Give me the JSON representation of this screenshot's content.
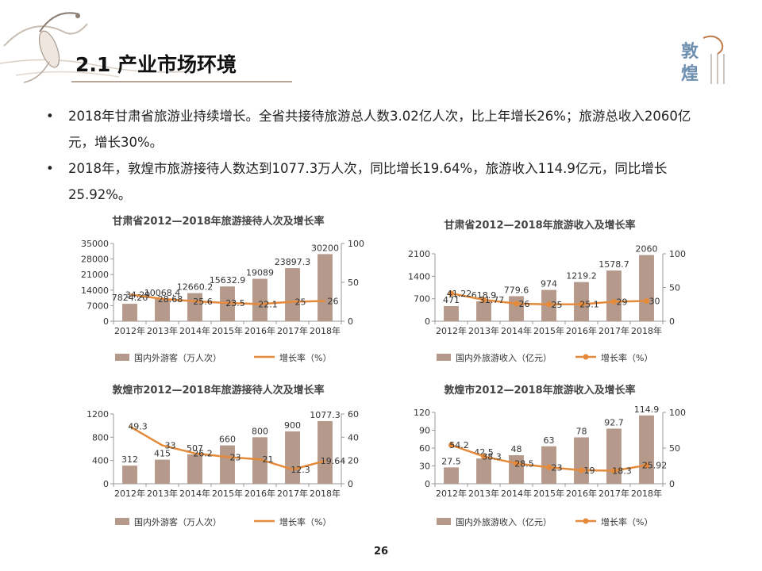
{
  "page": {
    "title": "2.1 产业市场环境",
    "page_number": "26",
    "bullet_symbol": "•",
    "bullets": [
      "2018年甘肃省旅游业持续增长。全省共接待旅游总人数3.02亿人次，比上年增长26%；旅游总收入2060亿元，增长30%。",
      "2018年，敦煌市旅游接待人数达到1077.3万人次，同比增长19.64%，旅游收入114.9亿元，同比增长25.92%。"
    ],
    "logo_text": "敦煌"
  },
  "colors": {
    "bar": "#b5998a",
    "line": "#e48a3a",
    "axis": "#999999",
    "text": "#333333"
  },
  "chart_data": [
    {
      "type": "bar",
      "title": "甘肃省2012—2018年旅游接待人次及增长率",
      "categories": [
        "2012年",
        "2013年",
        "2014年",
        "2015年",
        "2016年",
        "2017年",
        "2018年"
      ],
      "series": [
        {
          "name": "国内外游客（万人次）",
          "type": "bar",
          "axis": "left",
          "values": [
            7824.26,
            10068.4,
            12660.2,
            15632.9,
            19089,
            23897.3,
            30200
          ],
          "labels": [
            "7824.26",
            "10068.4",
            "12660.2",
            "15632.9",
            "19089",
            "23897.3",
            "30200"
          ]
        },
        {
          "name": "增长率（%）",
          "type": "line",
          "axis": "right",
          "marker": false,
          "values": [
            34.29,
            28.68,
            25.6,
            23.5,
            22.1,
            25,
            26
          ],
          "labels": [
            "34.29",
            "28.68",
            "25.6",
            "23.5",
            "22.1",
            "25",
            "26"
          ]
        }
      ],
      "y_left": {
        "min": 0,
        "max": 35000,
        "ticks": [
          "0",
          "7000",
          "14000",
          "21000",
          "28000",
          "35000"
        ]
      },
      "y_right": {
        "min": 0,
        "max": 100,
        "ticks": [
          "0",
          "50",
          "100"
        ]
      }
    },
    {
      "type": "bar",
      "title": "甘肃省2012—2018年旅游收入及增长率",
      "categories": [
        "2012年",
        "2013年",
        "2014年",
        "2015年",
        "2016年",
        "2017年",
        "2018年"
      ],
      "series": [
        {
          "name": "国内外旅游收入（亿元）",
          "type": "bar",
          "axis": "left",
          "values": [
            471,
            618.9,
            779.6,
            974,
            1219.2,
            1578.7,
            2060
          ],
          "labels": [
            "471",
            "618.9",
            "779.6",
            "974",
            "1219.2",
            "1578.7",
            "2060"
          ]
        },
        {
          "name": "增长率（%）",
          "type": "line",
          "axis": "right",
          "marker": true,
          "values": [
            41.22,
            31.77,
            26,
            25,
            25.1,
            29,
            30
          ],
          "labels": [
            "41.22",
            "31.77",
            "26",
            "25",
            "25.1",
            "29",
            "30"
          ]
        }
      ],
      "y_left": {
        "min": 0,
        "max": 2100,
        "ticks": [
          "0",
          "700",
          "1400",
          "2100"
        ]
      },
      "y_right": {
        "min": 0,
        "max": 100,
        "ticks": [
          "0",
          "50",
          "100"
        ]
      }
    },
    {
      "type": "bar",
      "title": "敦煌市2012—2018年旅游接待人次及增长率",
      "categories": [
        "2012年",
        "2013年",
        "2014年",
        "2015年",
        "2016年",
        "2017年",
        "2018年"
      ],
      "series": [
        {
          "name": "国内外游客（万人次）",
          "type": "bar",
          "axis": "left",
          "values": [
            312,
            415,
            507,
            660,
            800,
            900,
            1077.3
          ],
          "labels": [
            "312",
            "415",
            "507",
            "660",
            "800",
            "900",
            "1077.3"
          ]
        },
        {
          "name": "增长率（%）",
          "type": "line",
          "axis": "right",
          "marker": false,
          "values": [
            49.3,
            33,
            26.2,
            23,
            21,
            12.3,
            19.64
          ],
          "labels": [
            "49.3",
            "33",
            "26.2",
            "23",
            "21",
            "12.3",
            "19.64"
          ]
        }
      ],
      "y_left": {
        "min": 0,
        "max": 1200,
        "ticks": [
          "0",
          "400",
          "800",
          "1200"
        ]
      },
      "y_right": {
        "min": 0,
        "max": 60,
        "ticks": [
          "0",
          "20",
          "40",
          "60"
        ]
      }
    },
    {
      "type": "bar",
      "title": "敦煌市2012—2018年旅游收入及增长率",
      "categories": [
        "2012年",
        "2013年",
        "2014年",
        "2015年",
        "2016年",
        "2017年",
        "2018年"
      ],
      "series": [
        {
          "name": "国内外旅游收入（亿元）",
          "type": "bar",
          "axis": "left",
          "values": [
            27.5,
            42.5,
            48,
            63,
            78,
            92.7,
            114.9
          ],
          "labels": [
            "27.5",
            "42.5",
            "48",
            "63",
            "78",
            "92.7",
            "114.9"
          ]
        },
        {
          "name": "增长率（%）",
          "type": "line",
          "axis": "right",
          "marker": true,
          "values": [
            54.2,
            38.3,
            28.5,
            23,
            19,
            18.3,
            25.92
          ],
          "labels": [
            "54.2",
            "38.3",
            "28.5",
            "23",
            "19",
            "18.3",
            "25.92"
          ]
        }
      ],
      "y_left": {
        "min": 0,
        "max": 120,
        "ticks": [
          "0",
          "30",
          "60",
          "90",
          "120"
        ]
      },
      "y_right": {
        "min": 0,
        "max": 100,
        "ticks": [
          "0",
          "50",
          "100"
        ]
      }
    }
  ]
}
